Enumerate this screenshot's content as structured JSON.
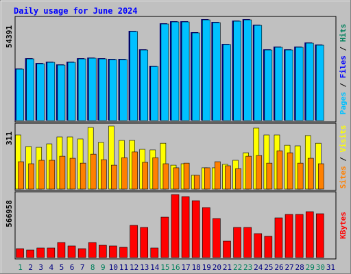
{
  "title": "Daily usage for June 2024",
  "chart_data": [
    {
      "type": "bar",
      "values": [
        27750,
        33300,
        30700,
        31450,
        29970,
        31450,
        33300,
        33670,
        33300,
        32930,
        32930,
        48100,
        38110,
        29230,
        52170,
        53280,
        53280,
        47360,
        54391,
        52910,
        41070,
        53650,
        54391,
        51430,
        38110,
        39590,
        38110,
        39590,
        41810,
        40700,
        null
      ],
      "color": "#00c0ff",
      "legend": [
        {
          "name": "Pages",
          "color": "#00c0ff"
        },
        {
          "name": "Files",
          "color": "#0000ff"
        },
        {
          "name": "Hits",
          "color": "#00805c"
        }
      ],
      "ylim": [
        0,
        54391
      ],
      "yticks": [
        54391
      ]
    },
    {
      "type": "bar",
      "series": [
        {
          "name": "Visits",
          "color": "#ffff00",
          "values": [
            267,
            210,
            206,
            223,
            257,
            257,
            247,
            304,
            230,
            311,
            240,
            240,
            196,
            193,
            226,
            118,
            125,
            68,
            105,
            105,
            122,
            142,
            179,
            301,
            267,
            267,
            216,
            213,
            264,
            226,
            null
          ]
        },
        {
          "name": "Sites",
          "color": "#ff8000",
          "values": [
            135,
            125,
            142,
            142,
            162,
            152,
            128,
            172,
            145,
            118,
            155,
            183,
            132,
            155,
            125,
            105,
            128,
            68,
            105,
            135,
            115,
            101,
            162,
            166,
            128,
            189,
            179,
            128,
            152,
            125,
            null
          ]
        }
      ],
      "ylim": [
        0,
        311
      ],
      "yticks": [
        311
      ]
    },
    {
      "type": "bar",
      "categories": [
        "1",
        "2",
        "3",
        "4",
        "5",
        "6",
        "7",
        "8",
        "9",
        "10",
        "11",
        "12",
        "13",
        "14",
        "15",
        "16",
        "17",
        "18",
        "19",
        "20",
        "21",
        "22",
        "23",
        "24",
        "25",
        "26",
        "27",
        "28",
        "29",
        "30",
        "31"
      ],
      "category_colors": [
        "#00805c",
        "#000080",
        "#000080",
        "#000080",
        "#000080",
        "#000080",
        "#000080",
        "#00805c",
        "#00805c",
        "#000080",
        "#000080",
        "#000080",
        "#000080",
        "#000080",
        "#00805c",
        "#00805c",
        "#000080",
        "#000080",
        "#000080",
        "#000080",
        "#000080",
        "#00805c",
        "#00805c",
        "#000080",
        "#000080",
        "#000080",
        "#000080",
        "#000080",
        "#00805c",
        "#00805c",
        "#000080"
      ],
      "series": [
        {
          "name": "KBytes",
          "color": "#ff0000",
          "values": [
            80100,
            67800,
            86300,
            86300,
            135600,
            104800,
            80100,
            135600,
            110900,
            104800,
            92400,
            289700,
            271200,
            86300,
            363600,
            566958,
            548500,
            511500,
            449900,
            351300,
            147900,
            271200,
            271200,
            215700,
            191100,
            357400,
            388300,
            388300,
            412900,
            394400,
            null
          ]
        }
      ],
      "ylim": [
        0,
        566958
      ],
      "yticks": [
        566958
      ]
    }
  ]
}
